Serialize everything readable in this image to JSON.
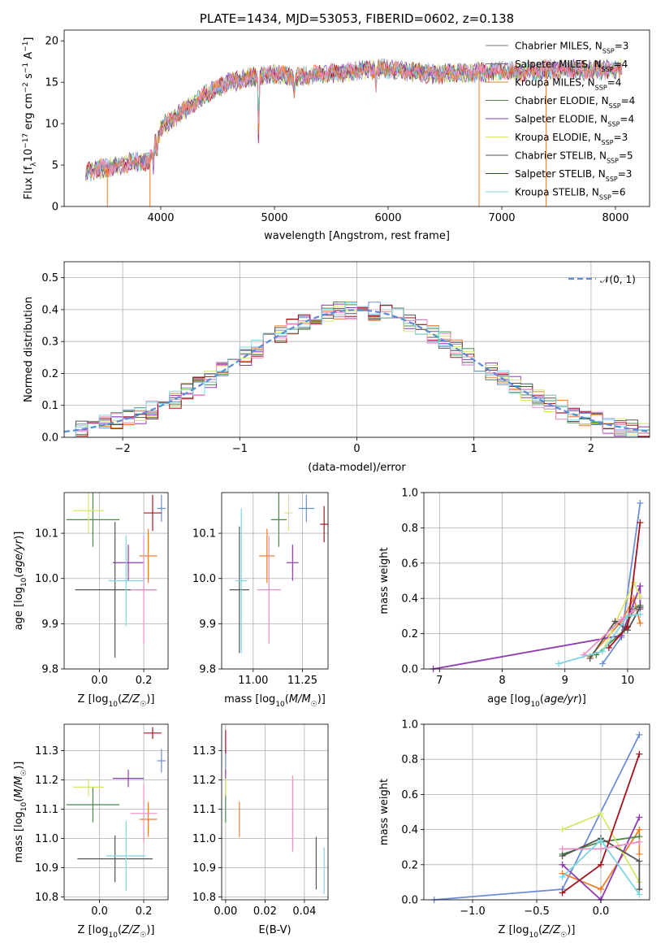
{
  "colors": [
    "#6b8fd6",
    "#ee7f2d",
    "#4a8a4a",
    "#8e3bb3",
    "#d5e86a",
    "#555555",
    "#a8121d",
    "#eb8fc3",
    "#7fd6e0"
  ],
  "chart_data": [
    {
      "id": "spectrum",
      "type": "line",
      "title": "PLATE=1434, MJD=53053, FIBERID=0602, z=0.138",
      "xlabel": "wavelength [Angstrom, rest frame]",
      "ylabel": "Flux [f_λ 10^-17 erg cm^-2 s^-1 A^-1]",
      "xlim": [
        3150,
        8300
      ],
      "ylim": [
        0,
        21.3
      ],
      "xticks": [
        4000,
        5000,
        6000,
        7000,
        8000
      ],
      "yticks": [
        0,
        5,
        10,
        15,
        20
      ],
      "grid": false,
      "legend_position": "top-right",
      "legend": [
        "Chabrier MILES, N_SSP=3",
        "Salpeter MILES, N_SSP=4",
        "Kroupa MILES, N_SSP=4",
        "Chabrier ELODIE, N_SSP=4",
        "Salpeter ELODIE, N_SSP=4",
        "Kroupa ELODIE, N_SSP=3",
        "Chabrier STELIB, N_SSP=5",
        "Salpeter STELIB, N_SSP=3",
        "Kroupa STELIB, N_SSP=6"
      ],
      "legend_colors": [
        "#777777",
        "#777777",
        "#d68a1e",
        "#4a8a4a",
        "#8e3bb3",
        "#d5e86a",
        "#555555",
        "#a8121d",
        "#7fd6e0"
      ],
      "continuum_x": [
        3340,
        3500,
        3700,
        3900,
        4000,
        4200,
        4400,
        4600,
        4800,
        5000,
        5200,
        5400,
        5600,
        5800,
        6000,
        6200,
        6400,
        6600,
        6800,
        7000,
        7200,
        7400,
        7600,
        7800,
        8000,
        8060
      ],
      "continuum_y": [
        4.2,
        4.6,
        5.2,
        5.5,
        9.5,
        11.5,
        13.5,
        15.0,
        15.6,
        16.0,
        15.6,
        16.0,
        16.2,
        16.5,
        16.6,
        16.3,
        16.0,
        16.1,
        16.2,
        16.3,
        16.3,
        16.5,
        16.6,
        16.4,
        16.6,
        16.8
      ],
      "absorption_lines": [
        {
          "x": 4861,
          "depth": 9.5
        },
        {
          "x": 5175,
          "depth": 3.5
        },
        {
          "x": 5893,
          "depth": 3.0
        },
        {
          "x": 3934,
          "depth": 2.5
        },
        {
          "x": 3968,
          "depth": 2.0
        }
      ],
      "drop_lines": [
        {
          "x": 3530,
          "color": "#ee7f2d"
        },
        {
          "x": 3905,
          "color": "#ee7f2d"
        },
        {
          "x": 6800,
          "color": "#ee7f2d"
        },
        {
          "x": 7390,
          "color": "#ee7f2d"
        }
      ]
    },
    {
      "id": "residuals",
      "type": "histogram",
      "xlabel": "(data-model)/error",
      "ylabel": "Normed distribution",
      "xlim": [
        -2.5,
        2.5
      ],
      "ylim": [
        0,
        0.55
      ],
      "xticks": [
        -2,
        -1,
        0,
        1,
        2
      ],
      "yticks": [
        0.0,
        0.1,
        0.2,
        0.3,
        0.4,
        0.5
      ],
      "grid": true,
      "legend_position": "top-right",
      "legend": [
        "𝒩(0, 1)"
      ],
      "bin_width": 0.1
    },
    {
      "id": "age_vs_Z",
      "type": "scatter",
      "xlabel": "Z [log10(Z/Z☉)]",
      "ylabel": "age  [log10(age/yr)]",
      "xlim": [
        -0.16,
        0.31
      ],
      "ylim": [
        9.8,
        10.19
      ],
      "xticks": [
        0.0,
        0.2
      ],
      "yticks": [
        9.8,
        9.9,
        10.0,
        10.1
      ],
      "grid": true,
      "points": [
        {
          "x": 0.28,
          "y": 10.155,
          "xerr": 0.02,
          "yerr": 0.03,
          "color": "#6b8fd6"
        },
        {
          "x": 0.22,
          "y": 10.05,
          "xerr": 0.04,
          "yerr": 0.06,
          "color": "#ee7f2d"
        },
        {
          "x": -0.03,
          "y": 10.13,
          "xerr": 0.12,
          "yerr": 0.06,
          "color": "#4a8a4a"
        },
        {
          "x": 0.13,
          "y": 10.035,
          "xerr": 0.07,
          "yerr": 0.04,
          "color": "#8e3bb3"
        },
        {
          "x": -0.05,
          "y": 10.15,
          "xerr": 0.07,
          "yerr": 0.05,
          "color": "#d5e86a"
        },
        {
          "x": 0.07,
          "y": 9.975,
          "xerr": 0.18,
          "yerr": 0.15,
          "color": "#555555"
        },
        {
          "x": 0.24,
          "y": 10.145,
          "xerr": 0.04,
          "yerr": 0.04,
          "color": "#a8121d"
        },
        {
          "x": 0.2,
          "y": 9.975,
          "xerr": 0.06,
          "yerr": 0.12,
          "color": "#eb8fc3"
        },
        {
          "x": 0.12,
          "y": 9.995,
          "xerr": 0.08,
          "yerr": 0.1,
          "color": "#7fd6e0"
        }
      ]
    },
    {
      "id": "age_vs_mass",
      "type": "scatter",
      "xlabel": "mass [log10(M/M☉)]",
      "ylabel": "",
      "xlim": [
        10.84,
        11.38
      ],
      "ylim": [
        9.8,
        10.19
      ],
      "xticks": [
        11.0,
        11.25
      ],
      "yticks": [
        9.8,
        9.9,
        10.0,
        10.1
      ],
      "grid": true,
      "points": [
        {
          "x": 11.27,
          "y": 10.155,
          "xerr": 0.04,
          "yerr": 0.03,
          "color": "#6b8fd6"
        },
        {
          "x": 11.07,
          "y": 10.05,
          "xerr": 0.04,
          "yerr": 0.06,
          "color": "#ee7f2d"
        },
        {
          "x": 11.13,
          "y": 10.13,
          "xerr": 0.04,
          "yerr": 0.06,
          "color": "#4a8a4a"
        },
        {
          "x": 11.2,
          "y": 10.035,
          "xerr": 0.03,
          "yerr": 0.04,
          "color": "#8e3bb3"
        },
        {
          "x": 11.18,
          "y": 10.145,
          "xerr": 0.02,
          "yerr": 0.04,
          "color": "#d5e86a"
        },
        {
          "x": 10.93,
          "y": 9.975,
          "xerr": 0.05,
          "yerr": 0.14,
          "color": "#555555"
        },
        {
          "x": 11.36,
          "y": 10.12,
          "xerr": 0.02,
          "yerr": 0.04,
          "color": "#a8121d"
        },
        {
          "x": 11.08,
          "y": 9.975,
          "xerr": 0.06,
          "yerr": 0.12,
          "color": "#eb8fc3"
        },
        {
          "x": 10.94,
          "y": 9.995,
          "xerr": 0.03,
          "yerr": 0.16,
          "color": "#7fd6e0"
        }
      ]
    },
    {
      "id": "weight_vs_age",
      "type": "line",
      "xlabel": "age  [log10(age/yr)]",
      "ylabel": "mass weight",
      "xlim": [
        6.75,
        10.35
      ],
      "ylim": [
        0,
        1.0
      ],
      "xticks": [
        7,
        8,
        9,
        10
      ],
      "yticks": [
        0.0,
        0.2,
        0.4,
        0.6,
        0.8,
        1.0
      ],
      "grid": true,
      "series": [
        {
          "color": "#6b8fd6",
          "points": [
            [
              9.6,
              0.03
            ],
            [
              9.9,
              0.18
            ],
            [
              10.2,
              0.94
            ]
          ]
        },
        {
          "color": "#ee7f2d",
          "points": [
            [
              9.4,
              0.07
            ],
            [
              9.9,
              0.27
            ],
            [
              10.1,
              0.4
            ],
            [
              10.2,
              0.26
            ]
          ]
        },
        {
          "color": "#4a8a4a",
          "points": [
            [
              9.5,
              0.08
            ],
            [
              9.95,
              0.22
            ],
            [
              10.1,
              0.34
            ],
            [
              10.2,
              0.36
            ]
          ]
        },
        {
          "color": "#8e3bb3",
          "points": [
            [
              6.9,
              0.0
            ],
            [
              9.9,
              0.19
            ],
            [
              10.2,
              0.47
            ],
            [
              10.2,
              0.34
            ]
          ]
        },
        {
          "color": "#d5e86a",
          "points": [
            [
              9.6,
              0.1
            ],
            [
              10.1,
              0.49
            ],
            [
              10.2,
              0.41
            ]
          ]
        },
        {
          "color": "#555555",
          "points": [
            [
              9.4,
              0.06
            ],
            [
              9.8,
              0.27
            ],
            [
              10.0,
              0.22
            ],
            [
              10.2,
              0.35
            ]
          ]
        },
        {
          "color": "#a8121d",
          "points": [
            [
              9.7,
              0.12
            ],
            [
              10.0,
              0.24
            ],
            [
              10.2,
              0.83
            ]
          ]
        },
        {
          "color": "#eb8fc3",
          "points": [
            [
              9.3,
              0.08
            ],
            [
              9.9,
              0.28
            ],
            [
              10.1,
              0.33
            ]
          ]
        },
        {
          "color": "#7fd6e0",
          "points": [
            [
              8.9,
              0.03
            ],
            [
              9.6,
              0.1
            ],
            [
              10.0,
              0.3
            ],
            [
              10.2,
              0.31
            ]
          ]
        }
      ]
    },
    {
      "id": "mass_vs_Z",
      "type": "scatter",
      "xlabel": "Z [log10(Z/Z☉)]",
      "ylabel": "mass [log10(M/M☉)]",
      "xlim": [
        -0.16,
        0.31
      ],
      "ylim": [
        10.79,
        11.39
      ],
      "xticks": [
        0.0,
        0.2
      ],
      "yticks": [
        10.8,
        10.9,
        11.0,
        11.1,
        11.2,
        11.3
      ],
      "grid": true,
      "points": [
        {
          "x": 0.28,
          "y": 11.265,
          "xerr": 0.02,
          "yerr": 0.04,
          "color": "#6b8fd6"
        },
        {
          "x": 0.22,
          "y": 11.065,
          "xerr": 0.04,
          "yerr": 0.06,
          "color": "#ee7f2d"
        },
        {
          "x": -0.03,
          "y": 11.115,
          "xerr": 0.12,
          "yerr": 0.06,
          "color": "#4a8a4a"
        },
        {
          "x": 0.13,
          "y": 11.205,
          "xerr": 0.07,
          "yerr": 0.03,
          "color": "#8e3bb3"
        },
        {
          "x": -0.05,
          "y": 11.175,
          "xerr": 0.07,
          "yerr": 0.03,
          "color": "#d5e86a"
        },
        {
          "x": 0.07,
          "y": 10.93,
          "xerr": 0.17,
          "yerr": 0.08,
          "color": "#555555"
        },
        {
          "x": 0.24,
          "y": 11.36,
          "xerr": 0.04,
          "yerr": 0.02,
          "color": "#a8121d"
        },
        {
          "x": 0.2,
          "y": 11.085,
          "xerr": 0.06,
          "yerr": 0.1,
          "color": "#eb8fc3"
        },
        {
          "x": 0.12,
          "y": 10.94,
          "xerr": 0.09,
          "yerr": 0.12,
          "color": "#7fd6e0"
        }
      ]
    },
    {
      "id": "mass_vs_ebv",
      "type": "scatter",
      "xlabel": "E(B-V)",
      "ylabel": "",
      "xlim": [
        -0.002,
        0.052
      ],
      "ylim": [
        10.79,
        11.39
      ],
      "xticks": [
        0.0,
        0.02,
        0.04
      ],
      "yticks": [
        10.8,
        10.9,
        11.0,
        11.1,
        11.2,
        11.3
      ],
      "grid": true,
      "points": [
        {
          "x": 0.0,
          "y": 11.265,
          "xerr": 0.0,
          "yerr": 0.04,
          "color": "#6b8fd6"
        },
        {
          "x": 0.007,
          "y": 11.065,
          "xerr": 0.0,
          "yerr": 0.06,
          "color": "#ee7f2d"
        },
        {
          "x": 0.0,
          "y": 11.115,
          "xerr": 0.0,
          "yerr": 0.06,
          "color": "#4a8a4a"
        },
        {
          "x": 0.0,
          "y": 11.205,
          "xerr": 0.0,
          "yerr": 0.03,
          "color": "#8e3bb3"
        },
        {
          "x": 0.0,
          "y": 11.175,
          "xerr": 0.0,
          "yerr": 0.03,
          "color": "#d5e86a"
        },
        {
          "x": 0.046,
          "y": 10.915,
          "xerr": 0.0,
          "yerr": 0.09,
          "color": "#555555"
        },
        {
          "x": 0.0,
          "y": 11.33,
          "xerr": 0.0,
          "yerr": 0.04,
          "color": "#a8121d"
        },
        {
          "x": 0.034,
          "y": 11.085,
          "xerr": 0.0,
          "yerr": 0.13,
          "color": "#eb8fc3"
        },
        {
          "x": 0.05,
          "y": 10.89,
          "xerr": 0.0,
          "yerr": 0.08,
          "color": "#7fd6e0"
        }
      ]
    },
    {
      "id": "weight_vs_Z",
      "type": "line",
      "xlabel": "Z [log10(Z/Z☉)]",
      "ylabel": "mass weight",
      "xlim": [
        -1.38,
        0.38
      ],
      "ylim": [
        0,
        1.0
      ],
      "xticks": [
        -1.0,
        -0.5,
        0.0
      ],
      "yticks": [
        0.0,
        0.2,
        0.4,
        0.6,
        0.8,
        1.0
      ],
      "grid": true,
      "series": [
        {
          "color": "#6b8fd6",
          "points": [
            [
              -1.3,
              0.0
            ],
            [
              -0.3,
              0.06
            ],
            [
              0.3,
              0.94
            ]
          ]
        },
        {
          "color": "#ee7f2d",
          "points": [
            [
              -0.3,
              0.15
            ],
            [
              0.0,
              0.06
            ],
            [
              0.3,
              0.4
            ],
            [
              0.3,
              0.26
            ]
          ]
        },
        {
          "color": "#4a8a4a",
          "points": [
            [
              -0.3,
              0.26
            ],
            [
              0.0,
              0.33
            ],
            [
              0.3,
              0.36
            ]
          ]
        },
        {
          "color": "#8e3bb3",
          "points": [
            [
              -0.3,
              0.2
            ],
            [
              0.0,
              0.0
            ],
            [
              0.3,
              0.47
            ]
          ]
        },
        {
          "color": "#d5e86a",
          "points": [
            [
              -0.3,
              0.4
            ],
            [
              0.0,
              0.49
            ],
            [
              0.3,
              0.1
            ]
          ]
        },
        {
          "color": "#555555",
          "points": [
            [
              -0.3,
              0.25
            ],
            [
              0.0,
              0.35
            ],
            [
              0.3,
              0.22
            ],
            [
              0.3,
              0.06
            ]
          ]
        },
        {
          "color": "#a8121d",
          "points": [
            [
              -0.3,
              0.04
            ],
            [
              0.0,
              0.2
            ],
            [
              0.3,
              0.83
            ]
          ]
        },
        {
          "color": "#eb8fc3",
          "points": [
            [
              -0.3,
              0.29
            ],
            [
              0.0,
              0.29
            ],
            [
              0.3,
              0.33
            ]
          ]
        },
        {
          "color": "#7fd6e0",
          "points": [
            [
              -0.3,
              0.13
            ],
            [
              0.0,
              0.34
            ],
            [
              0.3,
              0.03
            ]
          ]
        }
      ]
    }
  ]
}
